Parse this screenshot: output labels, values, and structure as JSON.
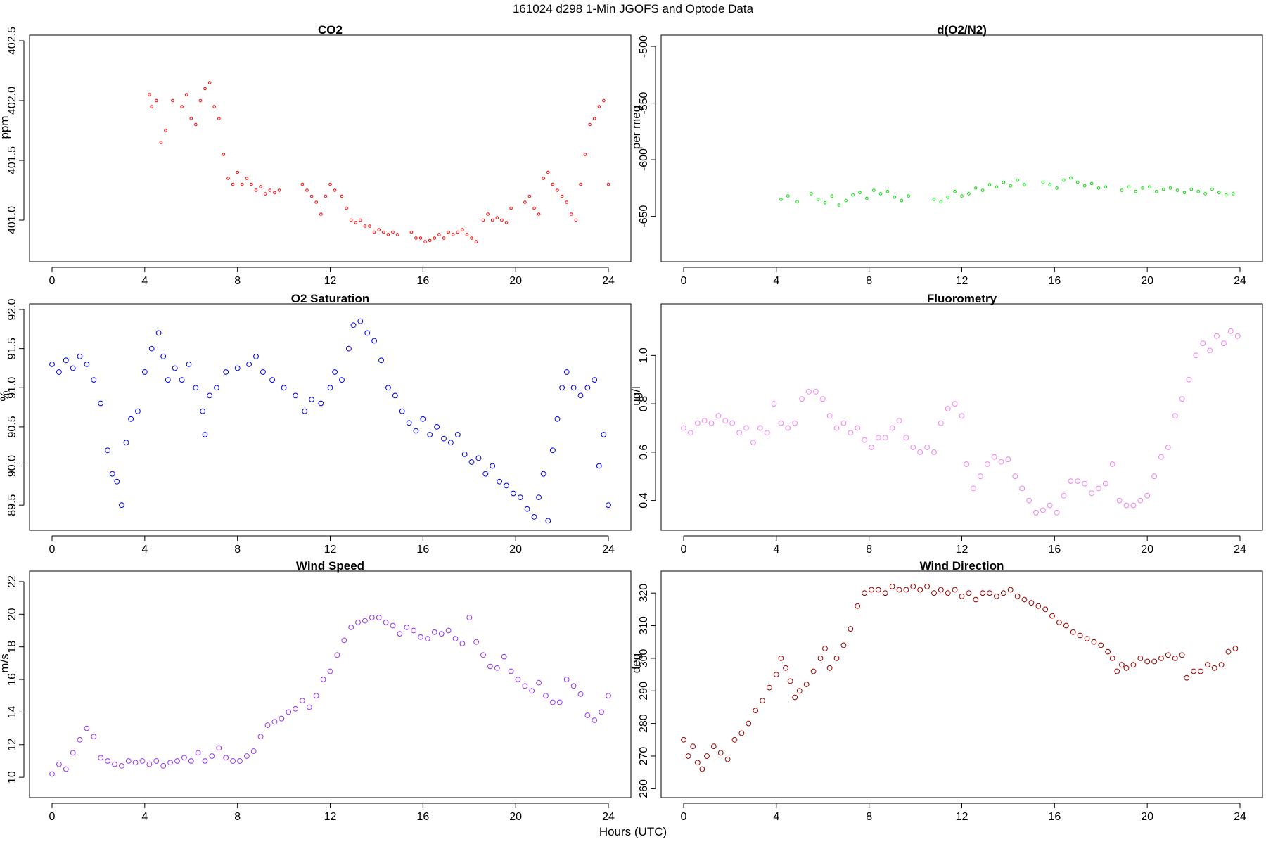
{
  "figure": {
    "title": "161024   d298   1-Min  JGOFS and Optode Data",
    "xlabel": "Hours (UTC)"
  },
  "chart_data": [
    {
      "type": "scatter",
      "title": "CO2",
      "ylabel": "ppm",
      "color": "#ff0000",
      "marker": "small-circle",
      "xlim": [
        0,
        24
      ],
      "ylim": [
        400.7,
        402.5
      ],
      "xticks": [
        0,
        4,
        8,
        12,
        16,
        20,
        24
      ],
      "yticks": [
        401.0,
        401.5,
        402.0,
        402.5
      ],
      "ytick_format": 1,
      "x": [
        4.2,
        4.3,
        4.5,
        4.7,
        4.9,
        5.2,
        5.6,
        5.8,
        6.0,
        6.2,
        6.4,
        6.6,
        6.8,
        7.0,
        7.2,
        7.4,
        7.6,
        7.8,
        8.0,
        8.2,
        8.4,
        8.6,
        8.8,
        9.0,
        9.2,
        9.4,
        9.6,
        9.8,
        10.8,
        11.0,
        11.2,
        11.4,
        11.6,
        11.8,
        12.0,
        12.2,
        12.5,
        12.7,
        12.9,
        13.1,
        13.3,
        13.5,
        13.7,
        13.9,
        14.1,
        14.3,
        14.5,
        14.7,
        14.9,
        15.5,
        15.7,
        15.9,
        16.1,
        16.3,
        16.5,
        16.7,
        16.9,
        17.1,
        17.3,
        17.5,
        17.7,
        17.9,
        18.1,
        18.3,
        18.6,
        18.8,
        19.0,
        19.2,
        19.4,
        19.6,
        19.8,
        20.4,
        20.6,
        20.8,
        21.0,
        21.2,
        21.4,
        21.6,
        21.8,
        22.0,
        22.2,
        22.4,
        22.6,
        22.8,
        23.0,
        23.2,
        23.4,
        23.6,
        23.8,
        24.0
      ],
      "y": [
        402.05,
        401.95,
        402.0,
        401.65,
        401.75,
        402.0,
        401.95,
        402.05,
        401.85,
        401.8,
        402.0,
        402.1,
        402.15,
        401.95,
        401.85,
        401.55,
        401.35,
        401.3,
        401.4,
        401.3,
        401.35,
        401.3,
        401.25,
        401.28,
        401.22,
        401.25,
        401.23,
        401.25,
        401.3,
        401.25,
        401.2,
        401.15,
        401.05,
        401.2,
        401.3,
        401.25,
        401.2,
        401.1,
        401.0,
        400.98,
        401.0,
        400.95,
        400.95,
        400.9,
        400.92,
        400.9,
        400.88,
        400.9,
        400.88,
        400.9,
        400.85,
        400.85,
        400.82,
        400.83,
        400.85,
        400.88,
        400.85,
        400.9,
        400.88,
        400.9,
        400.92,
        400.88,
        400.85,
        400.82,
        401.0,
        401.05,
        401.0,
        401.02,
        401.0,
        400.98,
        401.1,
        401.15,
        401.2,
        401.1,
        401.05,
        401.35,
        401.4,
        401.3,
        401.25,
        401.2,
        401.15,
        401.05,
        401.0,
        401.3,
        401.55,
        401.8,
        401.85,
        401.95,
        402.0,
        401.3
      ]
    },
    {
      "type": "scatter",
      "title": "d(O2/N2)",
      "ylabel": "per meg",
      "color": "#00dd00",
      "marker": "small-circle",
      "xlim": [
        0,
        24
      ],
      "ylim": [
        -685,
        -495
      ],
      "xticks": [
        0,
        4,
        8,
        12,
        16,
        20,
        24
      ],
      "yticks": [
        -500,
        -550,
        -600,
        -650
      ],
      "ytick_format": 0,
      "x": [
        4.2,
        4.5,
        4.9,
        5.5,
        5.8,
        6.1,
        6.4,
        6.7,
        7.0,
        7.3,
        7.6,
        7.9,
        8.2,
        8.5,
        8.8,
        9.1,
        9.4,
        9.7,
        10.8,
        11.1,
        11.4,
        11.7,
        12.0,
        12.3,
        12.6,
        12.9,
        13.2,
        13.5,
        13.8,
        14.1,
        14.4,
        14.7,
        15.5,
        15.8,
        16.1,
        16.4,
        16.7,
        17.0,
        17.3,
        17.6,
        17.9,
        18.2,
        18.9,
        19.2,
        19.5,
        19.8,
        20.1,
        20.4,
        20.7,
        21.0,
        21.3,
        21.6,
        21.9,
        22.2,
        22.5,
        22.8,
        23.1,
        23.4,
        23.7
      ],
      "y": [
        -635,
        -632,
        -637,
        -630,
        -635,
        -638,
        -632,
        -640,
        -636,
        -631,
        -629,
        -634,
        -627,
        -630,
        -628,
        -633,
        -636,
        -632,
        -635,
        -637,
        -633,
        -628,
        -632,
        -630,
        -625,
        -627,
        -622,
        -624,
        -620,
        -623,
        -618,
        -622,
        -620,
        -622,
        -625,
        -618,
        -616,
        -620,
        -623,
        -621,
        -625,
        -624,
        -627,
        -624,
        -628,
        -625,
        -624,
        -628,
        -626,
        -625,
        -627,
        -629,
        -626,
        -628,
        -630,
        -626,
        -629,
        -631,
        -630
      ]
    },
    {
      "type": "scatter",
      "title": "O2 Saturation",
      "ylabel": "%",
      "color": "#0000ee",
      "marker": "circle",
      "xlim": [
        0,
        24
      ],
      "ylim": [
        89.25,
        92.0
      ],
      "xticks": [
        0,
        4,
        8,
        12,
        16,
        20,
        24
      ],
      "yticks": [
        89.5,
        90.0,
        90.5,
        91.0,
        91.5,
        92.0
      ],
      "ytick_format": 1,
      "x": [
        0.0,
        0.3,
        0.6,
        0.9,
        1.2,
        1.5,
        1.8,
        2.1,
        2.4,
        2.6,
        2.8,
        3.0,
        3.2,
        3.4,
        3.7,
        4.0,
        4.3,
        4.6,
        4.8,
        5.0,
        5.3,
        5.6,
        5.9,
        6.2,
        6.5,
        6.6,
        6.8,
        7.1,
        7.5,
        8.0,
        8.5,
        8.8,
        9.1,
        9.5,
        10.0,
        10.5,
        10.9,
        11.2,
        11.6,
        12.0,
        12.2,
        12.5,
        12.8,
        13.0,
        13.3,
        13.6,
        13.9,
        14.2,
        14.5,
        14.8,
        15.1,
        15.4,
        15.7,
        16.0,
        16.3,
        16.6,
        16.9,
        17.2,
        17.5,
        17.8,
        18.1,
        18.4,
        18.7,
        19.0,
        19.3,
        19.6,
        19.9,
        20.2,
        20.5,
        20.8,
        21.0,
        21.2,
        21.4,
        21.6,
        21.8,
        22.0,
        22.2,
        22.5,
        22.8,
        23.1,
        23.4,
        23.6,
        23.8,
        24.0
      ],
      "y": [
        91.3,
        91.2,
        91.35,
        91.25,
        91.4,
        91.3,
        91.1,
        90.8,
        90.2,
        89.9,
        89.8,
        89.5,
        90.3,
        90.6,
        90.7,
        91.2,
        91.5,
        91.7,
        91.4,
        91.1,
        91.25,
        91.1,
        91.3,
        91.0,
        90.7,
        90.4,
        90.9,
        91.0,
        91.2,
        91.25,
        91.3,
        91.4,
        91.2,
        91.1,
        91.0,
        90.9,
        90.7,
        90.85,
        90.8,
        91.0,
        91.2,
        91.1,
        91.5,
        91.8,
        91.85,
        91.7,
        91.6,
        91.35,
        91.0,
        90.9,
        90.7,
        90.55,
        90.45,
        90.6,
        90.4,
        90.5,
        90.35,
        90.3,
        90.4,
        90.15,
        90.05,
        90.1,
        89.9,
        90.0,
        89.8,
        89.75,
        89.65,
        89.6,
        89.45,
        89.35,
        89.6,
        89.9,
        89.3,
        90.2,
        90.6,
        91.0,
        91.2,
        91.0,
        90.9,
        91.0,
        91.1,
        90.0,
        90.4,
        89.5
      ]
    },
    {
      "type": "scatter",
      "title": "Fluorometry",
      "ylabel": "ug/l",
      "color": "#ee82ee",
      "marker": "circle",
      "xlim": [
        0,
        24
      ],
      "ylim": [
        0.3,
        1.19
      ],
      "xticks": [
        0,
        4,
        8,
        12,
        16,
        20,
        24
      ],
      "yticks": [
        0.4,
        0.6,
        0.8,
        1.0
      ],
      "ytick_format": 1,
      "x": [
        0.0,
        0.3,
        0.6,
        0.9,
        1.2,
        1.5,
        1.8,
        2.1,
        2.4,
        2.7,
        3.0,
        3.3,
        3.6,
        3.9,
        4.2,
        4.5,
        4.8,
        5.1,
        5.4,
        5.7,
        6.0,
        6.3,
        6.6,
        6.9,
        7.2,
        7.5,
        7.8,
        8.1,
        8.4,
        8.7,
        9.0,
        9.3,
        9.6,
        9.9,
        10.2,
        10.5,
        10.8,
        11.1,
        11.4,
        11.7,
        12.0,
        12.2,
        12.5,
        12.8,
        13.1,
        13.4,
        13.7,
        14.0,
        14.3,
        14.6,
        14.9,
        15.2,
        15.5,
        15.8,
        16.1,
        16.4,
        16.7,
        17.0,
        17.3,
        17.6,
        17.9,
        18.2,
        18.5,
        18.8,
        19.1,
        19.4,
        19.7,
        20.0,
        20.3,
        20.6,
        20.9,
        21.2,
        21.5,
        21.8,
        22.1,
        22.4,
        22.7,
        23.0,
        23.3,
        23.6,
        23.9
      ],
      "y": [
        0.7,
        0.68,
        0.72,
        0.73,
        0.72,
        0.75,
        0.73,
        0.72,
        0.68,
        0.7,
        0.64,
        0.7,
        0.68,
        0.8,
        0.72,
        0.7,
        0.72,
        0.82,
        0.85,
        0.85,
        0.82,
        0.75,
        0.7,
        0.72,
        0.68,
        0.7,
        0.65,
        0.62,
        0.66,
        0.66,
        0.7,
        0.73,
        0.66,
        0.62,
        0.6,
        0.62,
        0.6,
        0.72,
        0.78,
        0.8,
        0.75,
        0.55,
        0.45,
        0.5,
        0.55,
        0.58,
        0.56,
        0.57,
        0.5,
        0.45,
        0.4,
        0.35,
        0.36,
        0.38,
        0.35,
        0.42,
        0.48,
        0.48,
        0.47,
        0.43,
        0.45,
        0.47,
        0.55,
        0.4,
        0.38,
        0.38,
        0.4,
        0.42,
        0.5,
        0.58,
        0.62,
        0.75,
        0.82,
        0.9,
        1.0,
        1.05,
        1.02,
        1.08,
        1.05,
        1.1,
        1.08
      ]
    },
    {
      "type": "scatter",
      "title": "Wind Speed",
      "ylabel": "m/s",
      "color": "#9933ee",
      "marker": "circle",
      "xlim": [
        0,
        24
      ],
      "ylim": [
        9.1,
        22.3
      ],
      "xticks": [
        0,
        4,
        8,
        12,
        16,
        20,
        24
      ],
      "yticks": [
        10,
        12,
        14,
        16,
        18,
        20,
        22
      ],
      "ytick_format": 0,
      "x": [
        0.0,
        0.3,
        0.6,
        0.9,
        1.2,
        1.5,
        1.8,
        2.1,
        2.4,
        2.7,
        3.0,
        3.3,
        3.6,
        3.9,
        4.2,
        4.5,
        4.8,
        5.1,
        5.4,
        5.7,
        6.0,
        6.3,
        6.6,
        6.9,
        7.2,
        7.5,
        7.8,
        8.1,
        8.4,
        8.7,
        9.0,
        9.3,
        9.6,
        9.9,
        10.2,
        10.5,
        10.8,
        11.1,
        11.4,
        11.7,
        12.0,
        12.3,
        12.6,
        12.9,
        13.2,
        13.5,
        13.8,
        14.1,
        14.4,
        14.7,
        15.0,
        15.3,
        15.6,
        15.9,
        16.2,
        16.5,
        16.8,
        17.1,
        17.4,
        17.7,
        18.0,
        18.3,
        18.6,
        18.9,
        19.2,
        19.5,
        19.8,
        20.1,
        20.4,
        20.7,
        21.0,
        21.3,
        21.6,
        21.9,
        22.2,
        22.5,
        22.8,
        23.1,
        23.4,
        23.7,
        24.0
      ],
      "y": [
        10.2,
        10.8,
        10.5,
        11.5,
        12.3,
        13.0,
        12.5,
        11.2,
        11.0,
        10.8,
        10.7,
        11.0,
        10.9,
        11.0,
        10.8,
        11.0,
        10.7,
        10.9,
        11.0,
        11.2,
        11.0,
        11.5,
        11.0,
        11.3,
        11.8,
        11.2,
        11.0,
        11.0,
        11.3,
        11.6,
        12.5,
        13.2,
        13.4,
        13.6,
        14.0,
        14.2,
        14.7,
        14.3,
        15.0,
        16.0,
        16.5,
        17.5,
        18.4,
        19.2,
        19.5,
        19.6,
        19.8,
        19.8,
        19.5,
        19.3,
        18.8,
        19.2,
        19.0,
        18.6,
        18.5,
        18.9,
        18.8,
        19.0,
        18.5,
        18.2,
        19.8,
        18.3,
        17.5,
        16.8,
        16.7,
        17.4,
        16.5,
        16.0,
        15.6,
        15.3,
        15.8,
        15.0,
        14.6,
        14.6,
        16.0,
        15.6,
        15.1,
        13.8,
        13.5,
        14.0,
        15.0
      ]
    },
    {
      "type": "scatter",
      "title": "Wind Direction",
      "ylabel": "deg",
      "color": "#990000",
      "marker": "circle",
      "xlim": [
        0,
        24
      ],
      "ylim": [
        259,
        325
      ],
      "xticks": [
        0,
        4,
        8,
        12,
        16,
        20,
        24
      ],
      "yticks": [
        260,
        270,
        280,
        290,
        300,
        310,
        320
      ],
      "ytick_format": 0,
      "x": [
        0.0,
        0.2,
        0.4,
        0.6,
        0.8,
        1.0,
        1.3,
        1.6,
        1.9,
        2.2,
        2.5,
        2.8,
        3.1,
        3.4,
        3.7,
        4.0,
        4.2,
        4.4,
        4.6,
        4.8,
        5.0,
        5.3,
        5.6,
        5.9,
        6.1,
        6.3,
        6.6,
        6.9,
        7.2,
        7.5,
        7.8,
        8.1,
        8.4,
        8.7,
        9.0,
        9.3,
        9.6,
        9.9,
        10.2,
        10.5,
        10.8,
        11.1,
        11.4,
        11.7,
        12.0,
        12.3,
        12.6,
        12.9,
        13.2,
        13.5,
        13.8,
        14.1,
        14.4,
        14.7,
        15.0,
        15.3,
        15.6,
        15.9,
        16.2,
        16.5,
        16.8,
        17.1,
        17.4,
        17.7,
        18.0,
        18.3,
        18.5,
        18.7,
        18.9,
        19.1,
        19.4,
        19.7,
        20.0,
        20.3,
        20.6,
        20.9,
        21.2,
        21.5,
        21.7,
        22.0,
        22.3,
        22.6,
        22.9,
        23.2,
        23.5,
        23.8
      ],
      "y": [
        275,
        270,
        273,
        268,
        266,
        270,
        273,
        271,
        269,
        275,
        277,
        280,
        284,
        287,
        291,
        295,
        300,
        297,
        293,
        288,
        290,
        292,
        296,
        300,
        303,
        297,
        300,
        304,
        309,
        316,
        320,
        321,
        321,
        320,
        322,
        321,
        321,
        322,
        321,
        322,
        320,
        321,
        320,
        321,
        319,
        320,
        318,
        320,
        320,
        319,
        320,
        321,
        319,
        318,
        317,
        316,
        315,
        313,
        311,
        310,
        308,
        307,
        306,
        305,
        304,
        302,
        300,
        296,
        298,
        297,
        298,
        300,
        299,
        299,
        300,
        301,
        300,
        301,
        294,
        296,
        296,
        298,
        297,
        298,
        302,
        303
      ]
    }
  ]
}
